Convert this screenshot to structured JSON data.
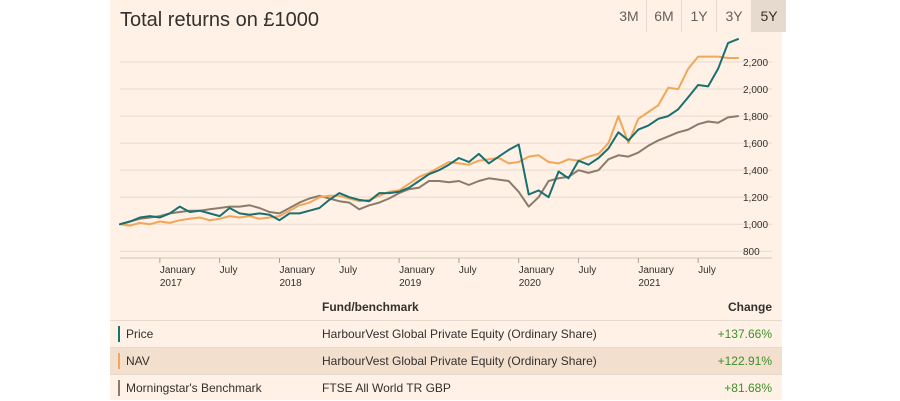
{
  "header": {
    "title": "Total returns on £1000",
    "ranges": [
      "3M",
      "6M",
      "1Y",
      "3Y",
      "5Y"
    ],
    "active_range": "5Y"
  },
  "table": {
    "col_fund": "Fund/benchmark",
    "col_change": "Change",
    "rows": [
      {
        "name": "Price",
        "fund": "HarbourVest Global Private Equity (Ordinary Share)",
        "change": "+137.66%",
        "color": "#1a6f6f"
      },
      {
        "name": "NAV",
        "fund": "HarbourVest Global Private Equity (Ordinary Share)",
        "change": "+122.91%",
        "color": "#f2a65a"
      },
      {
        "name": "Morningstar's Benchmark",
        "fund": "FTSE All World TR GBP",
        "change": "+81.68%",
        "color": "#8c7b6b"
      }
    ]
  },
  "chart_data": {
    "type": "line",
    "title": "Total returns on £1000",
    "xlabel": "",
    "ylabel": "",
    "ylim": [
      750,
      2400
    ],
    "y_ticks": [
      800,
      1000,
      1200,
      1400,
      1600,
      1800,
      2000,
      2200
    ],
    "y_tick_labels": [
      "800",
      "1,000",
      "1,200",
      "1,400",
      "1,600",
      "1,800",
      "2,000",
      "2,200"
    ],
    "x_ticks": [
      {
        "m": 4,
        "line1": "January",
        "line2": "2017"
      },
      {
        "m": 10,
        "line1": "July",
        "line2": ""
      },
      {
        "m": 16,
        "line1": "January",
        "line2": "2018"
      },
      {
        "m": 22,
        "line1": "July",
        "line2": ""
      },
      {
        "m": 28,
        "line1": "January",
        "line2": "2019"
      },
      {
        "m": 34,
        "line1": "July",
        "line2": ""
      },
      {
        "m": 40,
        "line1": "January",
        "line2": "2020"
      },
      {
        "m": 46,
        "line1": "July",
        "line2": ""
      },
      {
        "m": 52,
        "line1": "January",
        "line2": "2021"
      },
      {
        "m": 58,
        "line1": "July",
        "line2": ""
      }
    ],
    "x_month_offset": 3,
    "x_range_months": [
      0,
      62
    ],
    "series": [
      {
        "name": "Price",
        "color": "#1a6f6f",
        "values": [
          1000,
          1020,
          1050,
          1060,
          1050,
          1080,
          1130,
          1090,
          1100,
          1080,
          1060,
          1120,
          1080,
          1070,
          1080,
          1070,
          1030,
          1080,
          1080,
          1100,
          1120,
          1180,
          1230,
          1200,
          1180,
          1170,
          1230,
          1230,
          1240,
          1270,
          1320,
          1370,
          1400,
          1440,
          1490,
          1460,
          1520,
          1450,
          1500,
          1550,
          1590,
          1220,
          1250,
          1200,
          1390,
          1340,
          1470,
          1440,
          1490,
          1560,
          1680,
          1620,
          1700,
          1730,
          1780,
          1800,
          1850,
          1940,
          2030,
          2020,
          2150,
          2340,
          2370
        ]
      },
      {
        "name": "NAV",
        "color": "#f2a65a",
        "values": [
          1000,
          990,
          1010,
          1000,
          1020,
          1010,
          1030,
          1040,
          1050,
          1030,
          1040,
          1060,
          1050,
          1060,
          1040,
          1050,
          1060,
          1100,
          1140,
          1160,
          1200,
          1210,
          1210,
          1190,
          1170,
          1180,
          1210,
          1240,
          1250,
          1300,
          1350,
          1380,
          1420,
          1460,
          1450,
          1440,
          1470,
          1480,
          1490,
          1450,
          1460,
          1500,
          1510,
          1460,
          1450,
          1480,
          1470,
          1500,
          1520,
          1600,
          1800,
          1600,
          1780,
          1830,
          1880,
          2010,
          2000,
          2150,
          2240,
          2240,
          2240,
          2230,
          2230
        ]
      },
      {
        "name": "Morningstar's Benchmark",
        "color": "#8c7b6b",
        "values": [
          1000,
          1020,
          1040,
          1050,
          1060,
          1080,
          1090,
          1100,
          1100,
          1110,
          1120,
          1130,
          1130,
          1140,
          1120,
          1090,
          1080,
          1120,
          1160,
          1190,
          1210,
          1190,
          1170,
          1160,
          1110,
          1140,
          1160,
          1190,
          1230,
          1260,
          1270,
          1320,
          1320,
          1310,
          1320,
          1290,
          1320,
          1340,
          1330,
          1320,
          1240,
          1130,
          1200,
          1320,
          1340,
          1350,
          1400,
          1380,
          1400,
          1480,
          1510,
          1500,
          1530,
          1580,
          1620,
          1650,
          1680,
          1700,
          1740,
          1760,
          1750,
          1790,
          1800
        ]
      }
    ]
  }
}
